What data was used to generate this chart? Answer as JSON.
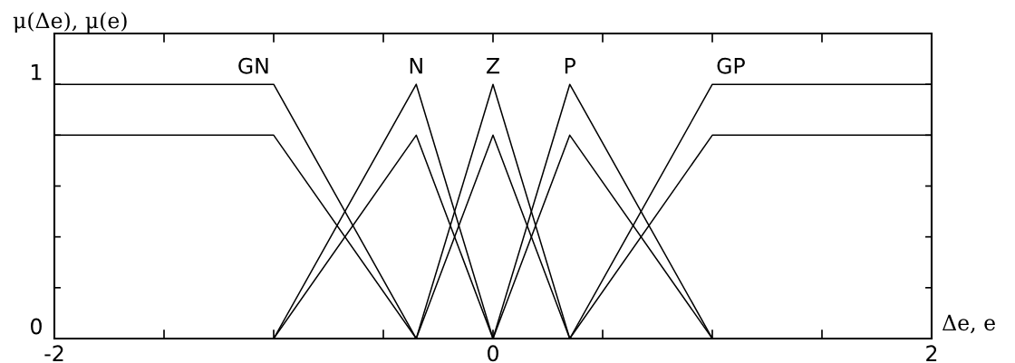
{
  "chart_data": {
    "type": "line",
    "xlabel": "Δe, e",
    "ylabel": "μ(Δe), μ(e)",
    "series": [
      {
        "color": "#000000",
        "x": [
          -2,
          -1,
          -0.35
        ],
        "values": [
          1,
          1,
          0
        ]
      },
      {
        "color": "#000000",
        "x": [
          -1,
          -0.35,
          0
        ],
        "values": [
          0,
          1,
          0
        ]
      },
      {
        "color": "#000000",
        "x": [
          -0.35,
          0,
          0.35
        ],
        "values": [
          0,
          1,
          0
        ]
      },
      {
        "color": "#000000",
        "x": [
          0,
          0.35,
          1
        ],
        "values": [
          0,
          1,
          0
        ]
      },
      {
        "color": "#000000",
        "x": [
          0.35,
          1,
          2
        ],
        "values": [
          0,
          1,
          1
        ]
      },
      {
        "color": "#000000",
        "x": [
          -2,
          -1,
          -0.35
        ],
        "values": [
          0.8,
          0.8,
          0
        ]
      },
      {
        "color": "#000000",
        "x": [
          -1,
          -0.35,
          0
        ],
        "values": [
          0,
          0.8,
          0
        ]
      },
      {
        "color": "#000000",
        "x": [
          -0.35,
          0,
          0.35
        ],
        "values": [
          0,
          0.8,
          0
        ]
      },
      {
        "color": "#000000",
        "x": [
          0,
          0.35,
          1
        ],
        "values": [
          0,
          0.8,
          0
        ]
      },
      {
        "color": "#000000",
        "x": [
          0.35,
          1,
          2
        ],
        "values": [
          0,
          0.8,
          0.8
        ]
      }
    ],
    "annotations": [
      {
        "text": "GN",
        "x": -1,
        "y": 1
      },
      {
        "text": "N",
        "x": -0.35,
        "y": 1
      },
      {
        "text": "Z",
        "x": 0,
        "y": 1
      },
      {
        "text": "P",
        "x": 0.35,
        "y": 1
      },
      {
        "text": "GP",
        "x": 1,
        "y": 1
      }
    ],
    "xlim": [
      -2,
      2
    ],
    "ylim": [
      0,
      1.2
    ],
    "xticks": [
      -2,
      {
        "value": -1.5,
        "label": null
      },
      {
        "value": -1,
        "label": null
      },
      {
        "value": -0.5,
        "label": null
      },
      0,
      {
        "value": 0.5,
        "label": null
      },
      {
        "value": 1,
        "label": null
      },
      {
        "value": 1.5,
        "label": null
      },
      2
    ],
    "yticks": [
      0,
      {
        "value": 0.2,
        "label": null
      },
      {
        "value": 0.4,
        "label": null
      },
      {
        "value": 0.6,
        "label": null
      },
      {
        "value": 0.8,
        "label": null
      },
      1
    ],
    "line_style": "solid"
  }
}
